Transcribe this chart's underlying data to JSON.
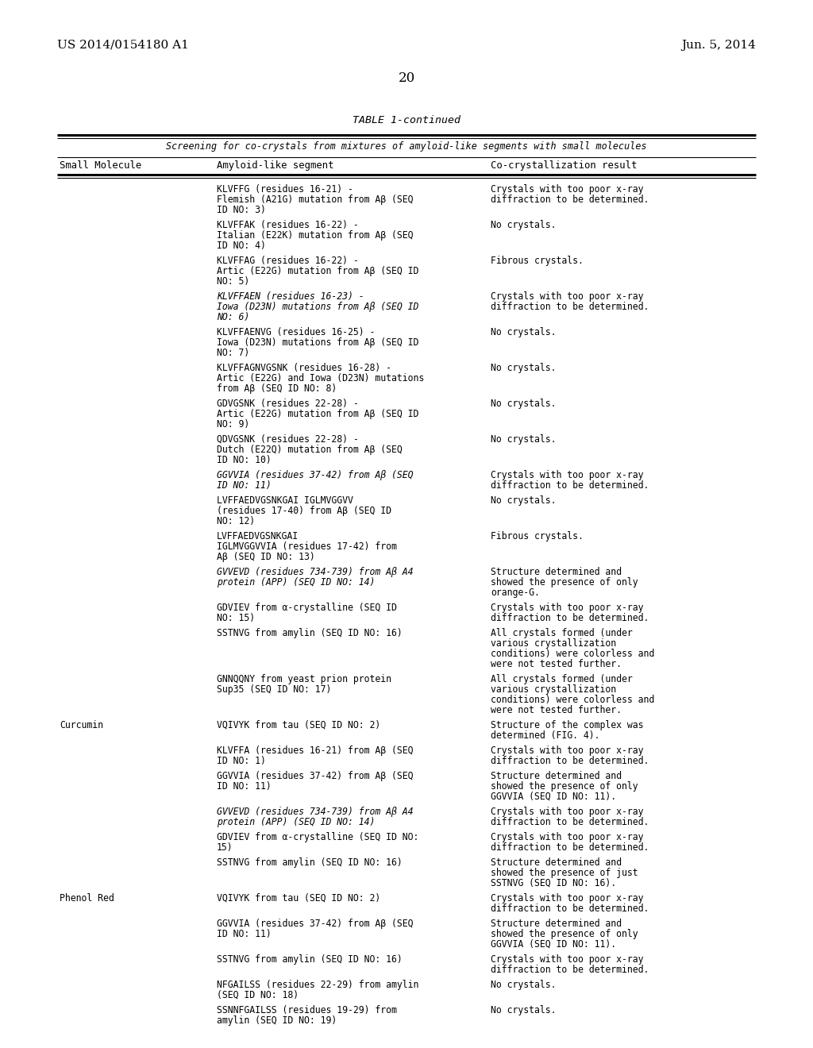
{
  "header_left": "US 2014/0154180 A1",
  "header_right": "Jun. 5, 2014",
  "page_number": "20",
  "table_title": "TABLE 1-continued",
  "table_subtitle": "Screening for co-crystals from mixtures of amyloid-like segments with small molecules",
  "col1_header": "Small Molecule",
  "col2_header": "Amyloid-like segment",
  "col3_header": "Co-crystallization result",
  "background_color": "#ffffff",
  "text_color": "#000000",
  "rows": [
    {
      "molecule": "",
      "segment": "KLVFFG (residues 16-21) -\nFlemish (A21G) mutation from Aβ (SEQ\nID NO: 3)",
      "result": "Crystals with too poor x-ray\ndiffraction to be determined.",
      "italic_seg": false
    },
    {
      "molecule": "",
      "segment": "KLVFFAK (residues 16-22) -\nItalian (E22K) mutation from Aβ (SEQ\nID NO: 4)",
      "result": "No crystals.",
      "italic_seg": false
    },
    {
      "molecule": "",
      "segment": "KLVFFAG (residues 16-22) -\nArtic (E22G) mutation from Aβ (SEQ ID\nNO: 5)",
      "result": "Fibrous crystals.",
      "italic_seg": false
    },
    {
      "molecule": "",
      "segment": "KLVFFAEN (residues 16-23) -\nIowa (D23N) mutations from Aβ (SEQ ID\nNO: 6)",
      "result": "Crystals with too poor x-ray\ndiffraction to be determined.",
      "italic_seg": true
    },
    {
      "molecule": "",
      "segment": "KLVFFAENVG (residues 16-25) -\nIowa (D23N) mutations from Aβ (SEQ ID\nNO: 7)",
      "result": "No crystals.",
      "italic_seg": false
    },
    {
      "molecule": "",
      "segment": "KLVFFAGNVGSNK (residues 16-28) -\nArtic (E22G) and Iowa (D23N) mutations\nfrom Aβ (SEQ ID NO: 8)",
      "result": "No crystals.",
      "italic_seg": false
    },
    {
      "molecule": "",
      "segment": "GDVGSNK (residues 22-28) -\nArtic (E22G) mutation from Aβ (SEQ ID\nNO: 9)",
      "result": "No crystals.",
      "italic_seg": false
    },
    {
      "molecule": "",
      "segment": "QDVGSNK (residues 22-28) -\nDutch (E22Q) mutation from Aβ (SEQ\nID NO: 10)",
      "result": "No crystals.",
      "italic_seg": false
    },
    {
      "molecule": "",
      "segment": "GGVVIA (residues 37-42) from Aβ (SEQ\nID NO: 11)",
      "result": "Crystals with too poor x-ray\ndiffraction to be determined.",
      "italic_seg": true
    },
    {
      "molecule": "",
      "segment": "LVFFAEDVGSNKGAI IGLMVGGVV\n(residues 17-40) from Aβ (SEQ ID\nNO: 12)",
      "result": "No crystals.",
      "italic_seg": false
    },
    {
      "molecule": "",
      "segment": "LVFFAEDVGSNKGAI\nIGLMVGGVVIA (residues 17-42) from\nAβ (SEQ ID NO: 13)",
      "result": "Fibrous crystals.",
      "italic_seg": false
    },
    {
      "molecule": "",
      "segment": "GVVEVD (residues 734-739) from Aβ A4\nprotein (APP) (SEQ ID NO: 14)",
      "result": "Structure determined and\nshowed the presence of only\norange-G.",
      "italic_seg": true
    },
    {
      "molecule": "",
      "segment": "GDVIEV from α-crystalline (SEQ ID\nNO: 15)",
      "result": "Crystals with too poor x-ray\ndiffraction to be determined.",
      "italic_seg": false
    },
    {
      "molecule": "",
      "segment": "SSTNVG from amylin (SEQ ID NO: 16)",
      "result": "All crystals formed (under\nvarious crystallization\nconditions) were colorless and\nwere not tested further.",
      "italic_seg": false
    },
    {
      "molecule": "",
      "segment": "GNNQQNY from yeast prion protein\nSup35 (SEQ ID NO: 17)",
      "result": "All crystals formed (under\nvarious crystallization\nconditions) were colorless and\nwere not tested further.",
      "italic_seg": false
    },
    {
      "molecule": "Curcumin",
      "segment": "VQIVYK from tau (SEQ ID NO: 2)",
      "result": "Structure of the complex was\ndetermined (FIG. 4).",
      "italic_seg": false
    },
    {
      "molecule": "",
      "segment": "KLVFFA (residues 16-21) from Aβ (SEQ\nID NO: 1)",
      "result": "Crystals with too poor x-ray\ndiffraction to be determined.",
      "italic_seg": false
    },
    {
      "molecule": "",
      "segment": "GGVVIA (residues 37-42) from Aβ (SEQ\nID NO: 11)",
      "result": "Structure determined and\nshowed the presence of only\nGGVVIA (SEQ ID NO: 11).",
      "italic_seg": false
    },
    {
      "molecule": "",
      "segment": "GVVEVD (residues 734-739) from Aβ A4\nprotein (APP) (SEQ ID NO: 14)",
      "result": "Crystals with too poor x-ray\ndiffraction to be determined.",
      "italic_seg": true
    },
    {
      "molecule": "",
      "segment": "GDVIEV from α-crystalline (SEQ ID NO:\n15)",
      "result": "Crystals with too poor x-ray\ndiffraction to be determined.",
      "italic_seg": false
    },
    {
      "molecule": "",
      "segment": "SSTNVG from amylin (SEQ ID NO: 16)",
      "result": "Structure determined and\nshowed the presence of just\nSSTNVG (SEQ ID NO: 16).",
      "italic_seg": false
    },
    {
      "molecule": "Phenol Red",
      "segment": "VQIVYK from tau (SEQ ID NO: 2)",
      "result": "Crystals with too poor x-ray\ndiffraction to be determined.",
      "italic_seg": false
    },
    {
      "molecule": "",
      "segment": "GGVVIA (residues 37-42) from Aβ (SEQ\nID NO: 11)",
      "result": "Structure determined and\nshowed the presence of only\nGGVVIA (SEQ ID NO: 11).",
      "italic_seg": false
    },
    {
      "molecule": "",
      "segment": "SSTNVG from amylin (SEQ ID NO: 16)",
      "result": "Crystals with too poor x-ray\ndiffraction to be determined.",
      "italic_seg": false
    },
    {
      "molecule": "",
      "segment": "NFGAILSS (residues 22-29) from amylin\n(SEQ ID NO: 18)",
      "result": "No crystals.",
      "italic_seg": false
    },
    {
      "molecule": "",
      "segment": "SSNNFGAILSS (residues 19-29) from\namylin (SEQ ID NO: 19)",
      "result": "No crystals.",
      "italic_seg": false
    }
  ]
}
